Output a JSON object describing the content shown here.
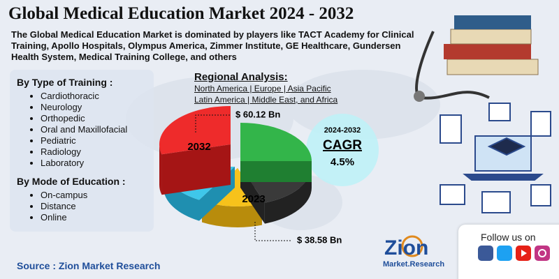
{
  "title": "Global Medical Education Market 2024 - 2032",
  "description": "The Global Medical Education Market is dominated by players like TACT Academy for Clinical Training, Apollo Hospitals, Olympus America, Zimmer Institute, GE Healthcare, Gundersen Health System, Medical Training College, and others",
  "segments": [
    {
      "heading": "By Type of Training :",
      "items": [
        "Cardiothoracic",
        "Neurology",
        "Orthopedic",
        "Oral and Maxillofacial",
        "Pediatric",
        "Radiology",
        "Laboratory"
      ]
    },
    {
      "heading": "By Mode of Education :",
      "items": [
        "On-campus",
        "Distance",
        "Online"
      ]
    }
  ],
  "regional": {
    "title": "Regional Analysis:",
    "lines": [
      "North America | Europe | Asia Pacific",
      "Latin America | Middle East, and Africa"
    ]
  },
  "pie": {
    "label_2032": "2032",
    "label_2023": "2023",
    "value_2032": "$ 60.12 Bn",
    "value_2023": "$ 38.58 Bn"
  },
  "cagr": {
    "period": "2024-2032",
    "label": "CAGR",
    "value": "4.5%"
  },
  "source": "Source : Zion Market Research",
  "logo": {
    "name": "Zion",
    "sub": "Market.Research"
  },
  "follow": "Follow us on"
}
